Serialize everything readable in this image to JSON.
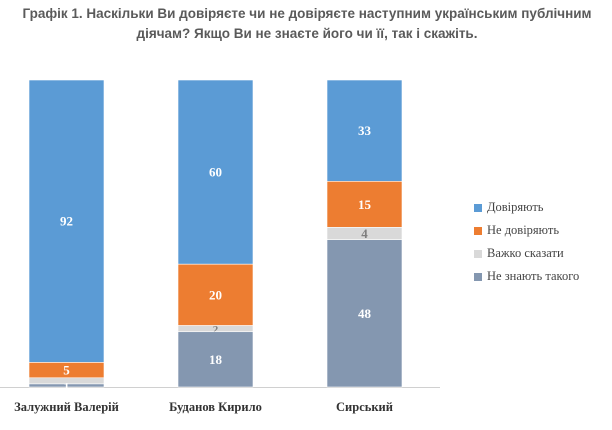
{
  "title_lines": [
    "Графік 1. Наскільки Ви довіряєте чи не довіряєте наступним українським публічним",
    "діячам? Якщо Ви не знаєте його чи її, так і скажіть."
  ],
  "colors": {
    "trust": "#5b9bd5",
    "distrust": "#ed7d31",
    "hard_to_say": "#d9d9d9",
    "dont_know": "#8497b0"
  },
  "legend": [
    {
      "label": "Довіряють",
      "color": "#5b9bd5"
    },
    {
      "label": "Не довіряють",
      "color": "#ed7d31"
    },
    {
      "label": "Важко сказати",
      "color": "#d9d9d9"
    },
    {
      "label": "Не знають такого",
      "color": "#8497b0"
    }
  ],
  "chart_data": {
    "type": "bar",
    "stacked": true,
    "categories": [
      "Залужний Валерій",
      "Буданов Кирило",
      "Сирський"
    ],
    "series": [
      {
        "name": "Довіряють",
        "values": [
          92,
          60,
          33
        ]
      },
      {
        "name": "Не довіряють",
        "values": [
          5,
          20,
          15
        ]
      },
      {
        "name": "Важко сказати",
        "values": [
          2,
          2,
          4
        ]
      },
      {
        "name": "Не знають такого",
        "values": [
          1,
          18,
          48
        ]
      }
    ],
    "data_labels": [
      [
        "92",
        "5",
        "",
        "1"
      ],
      [
        "60",
        "20",
        "2",
        "18"
      ],
      [
        "33",
        "15",
        "4",
        "48"
      ]
    ],
    "ylim": [
      0,
      100
    ],
    "legend_position": "right"
  }
}
